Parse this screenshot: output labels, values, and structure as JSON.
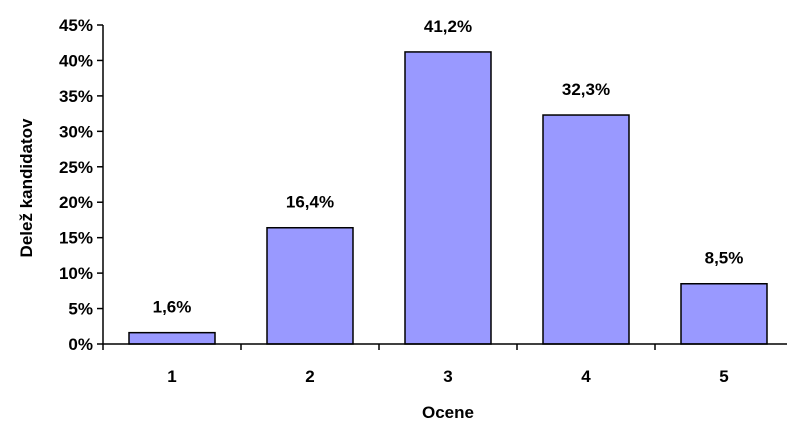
{
  "chart_data": {
    "type": "bar",
    "categories": [
      "1",
      "2",
      "3",
      "4",
      "5"
    ],
    "values": [
      1.6,
      16.4,
      41.2,
      32.3,
      8.5
    ],
    "data_labels": [
      "1,6%",
      "16,4%",
      "41,2%",
      "32,3%",
      "8,5%"
    ],
    "ylim": [
      0,
      45
    ],
    "yticks": [
      0,
      5,
      10,
      15,
      20,
      25,
      30,
      35,
      40,
      45
    ],
    "ytick_labels": [
      "0%",
      "5%",
      "10%",
      "15%",
      "20%",
      "25%",
      "30%",
      "35%",
      "40%",
      "45%"
    ],
    "xlabel": "Ocene",
    "ylabel": "Delež kandidatov",
    "title": "",
    "grid": false,
    "legend": "none",
    "colors": {
      "bar_fill": "#9999ff",
      "bar_stroke": "#000000",
      "axis": "#000000"
    }
  }
}
